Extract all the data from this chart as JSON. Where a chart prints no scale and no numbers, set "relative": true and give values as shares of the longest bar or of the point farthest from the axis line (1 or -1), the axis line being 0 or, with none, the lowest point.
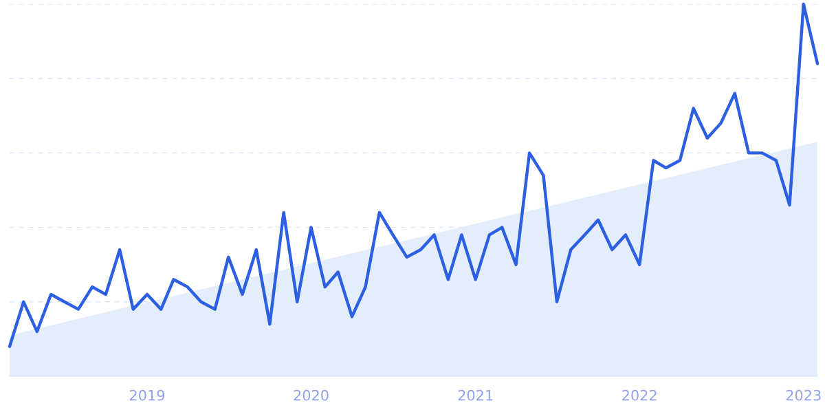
{
  "chart_data": {
    "type": "line",
    "relative": true,
    "grid": "y",
    "tick_labels": "x",
    "marker": "none",
    "line_style": "solid",
    "x": [
      "2018-03",
      "2018-04",
      "2018-05",
      "2018-06",
      "2018-07",
      "2018-08",
      "2018-09",
      "2018-10",
      "2018-11",
      "2018-12",
      "2019-01",
      "2019-02",
      "2019-03",
      "2019-04",
      "2019-05",
      "2019-06",
      "2019-07",
      "2019-08",
      "2019-09",
      "2019-10",
      "2019-11",
      "2019-12",
      "2020-01",
      "2020-02",
      "2020-03",
      "2020-04",
      "2020-05",
      "2020-06",
      "2020-07",
      "2020-08",
      "2020-09",
      "2020-10",
      "2020-11",
      "2020-12",
      "2021-01",
      "2021-02",
      "2021-03",
      "2021-04",
      "2021-05",
      "2021-06",
      "2021-07",
      "2021-08",
      "2021-09",
      "2021-10",
      "2021-11",
      "2021-12",
      "2022-01",
      "2022-02",
      "2022-03",
      "2022-04",
      "2022-05",
      "2022-06",
      "2022-07",
      "2022-08",
      "2022-09",
      "2022-10",
      "2022-11",
      "2022-12",
      "2023-01",
      "2023-02"
    ],
    "xlim": [
      "2018-03",
      "2023-02"
    ],
    "xticks": [
      {
        "value": "2019-01",
        "label": "2019"
      },
      {
        "value": "2020-01",
        "label": "2020"
      },
      {
        "value": "2021-01",
        "label": "2021"
      },
      {
        "value": "2022-01",
        "label": "2022"
      },
      {
        "value": "2023-01",
        "label": "2023"
      }
    ],
    "series": [
      {
        "type": "area",
        "color": "#e3edfb",
        "x": [
          "2018-03",
          "2023-02"
        ],
        "values": [
          0.11,
          0.63
        ]
      },
      {
        "color": "#2d5fe3",
        "values": [
          0.08,
          0.2,
          0.12,
          0.22,
          0.2,
          0.18,
          0.24,
          0.22,
          0.34,
          0.18,
          0.22,
          0.18,
          0.26,
          0.24,
          0.2,
          0.18,
          0.32,
          0.22,
          0.34,
          0.14,
          0.44,
          0.2,
          0.4,
          0.24,
          0.28,
          0.16,
          0.24,
          0.44,
          0.38,
          0.32,
          0.34,
          0.38,
          0.26,
          0.38,
          0.26,
          0.38,
          0.4,
          0.3,
          0.6,
          0.54,
          0.2,
          0.34,
          0.38,
          0.42,
          0.34,
          0.38,
          0.3,
          0.58,
          0.56,
          0.58,
          0.72,
          0.64,
          0.68,
          0.76,
          0.6,
          0.6,
          0.58,
          0.46,
          1.0,
          0.84
        ]
      }
    ]
  }
}
